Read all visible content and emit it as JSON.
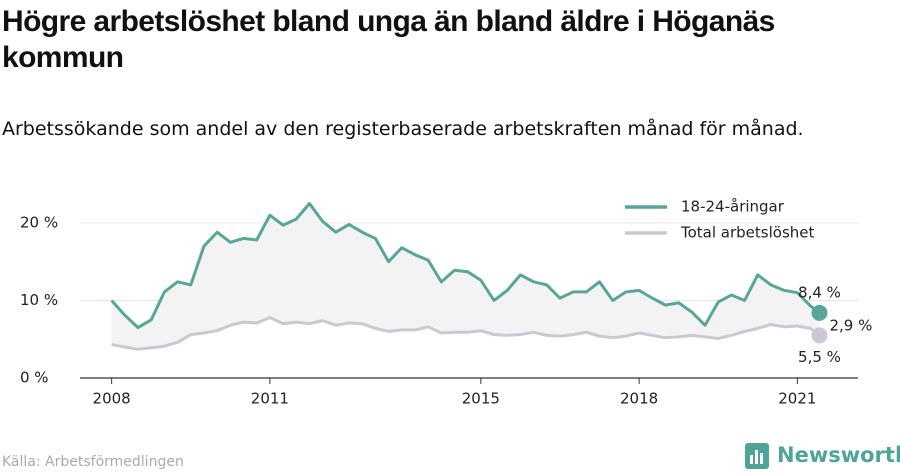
{
  "title": "Högre arbetslöshet bland unga än bland äldre i Höganäs kommun",
  "subtitle": "Arbetssökande som andel av den registerbaserade arbetskraften månad för månad.",
  "source": "Källa: Arbetsförmedlingen",
  "logo": "Newsworthy",
  "chart_data": {
    "type": "line",
    "x": [
      2008.0,
      2008.25,
      2008.5,
      2008.75,
      2009.0,
      2009.25,
      2009.5,
      2009.75,
      2010.0,
      2010.25,
      2010.5,
      2010.75,
      2011.0,
      2011.25,
      2011.5,
      2011.75,
      2012.0,
      2012.25,
      2012.5,
      2012.75,
      2013.0,
      2013.25,
      2013.5,
      2013.75,
      2014.0,
      2014.25,
      2014.5,
      2014.75,
      2015.0,
      2015.25,
      2015.5,
      2015.75,
      2016.0,
      2016.25,
      2016.5,
      2016.75,
      2017.0,
      2017.25,
      2017.5,
      2017.75,
      2018.0,
      2018.25,
      2018.5,
      2018.75,
      2019.0,
      2019.25,
      2019.5,
      2019.75,
      2020.0,
      2020.25,
      2020.5,
      2020.75,
      2021.0,
      2021.25,
      2021.42
    ],
    "series": [
      {
        "name": "18-24-åringar",
        "color": "#57a698",
        "end_label": "8,4 %",
        "values": [
          10,
          8.1,
          6.5,
          7.5,
          11.1,
          12.4,
          12,
          17,
          18.8,
          17.5,
          18,
          17.8,
          21,
          19.7,
          20.5,
          22.5,
          20.2,
          18.8,
          19.8,
          18.8,
          18,
          15,
          16.8,
          15.9,
          15.2,
          12.4,
          13.9,
          13.7,
          12.6,
          10,
          11.3,
          13.3,
          12.4,
          12,
          10.3,
          11.1,
          11.1,
          12.4,
          10,
          11.1,
          11.3,
          10.3,
          9.4,
          9.7,
          8.5,
          6.8,
          9.8,
          10.7,
          10,
          13.3,
          12,
          11.3,
          11,
          9.3,
          8.4
        ]
      },
      {
        "name": "Total arbetslöshet",
        "color": "#cac9d3",
        "end_label": "5,5 %",
        "values": [
          4.3,
          4.0,
          3.7,
          3.9,
          4.1,
          4.6,
          5.6,
          5.8,
          6.1,
          6.8,
          7.2,
          7.1,
          7.8,
          7.0,
          7.2,
          7.0,
          7.4,
          6.8,
          7.1,
          7.0,
          6.4,
          6.0,
          6.2,
          6.2,
          6.6,
          5.8,
          5.9,
          5.9,
          6.1,
          5.6,
          5.5,
          5.6,
          5.9,
          5.5,
          5.4,
          5.6,
          5.9,
          5.4,
          5.2,
          5.4,
          5.8,
          5.5,
          5.2,
          5.3,
          5.5,
          5.3,
          5.1,
          5.5,
          6.0,
          6.4,
          6.9,
          6.6,
          6.7,
          6.4,
          5.5
        ]
      }
    ],
    "gap_label": {
      "value": 2.9,
      "label": "2,9 %"
    },
    "xlim": [
      2007.4,
      2022.15
    ],
    "xticks": [
      2008,
      2011,
      2015,
      2018,
      2021
    ],
    "ylim": [
      0,
      23.6
    ],
    "yticks": [
      {
        "value": 0,
        "label": "0 %"
      },
      {
        "value": 10,
        "label": "10 %"
      },
      {
        "value": 20,
        "label": "20 %"
      }
    ],
    "grid": true,
    "legend": "top-right",
    "fill_between": "#f3f3f4"
  }
}
